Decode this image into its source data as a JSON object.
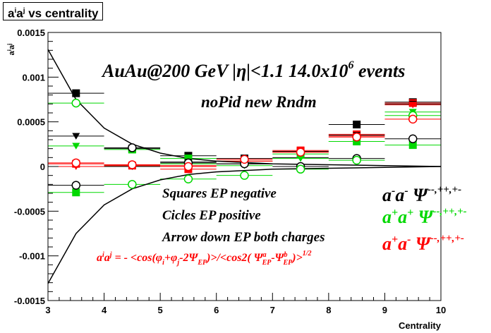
{
  "title": {
    "a": "a",
    "i": "i",
    "a2": "a",
    "j": "j",
    "rest": " vs centrality"
  },
  "annotations": {
    "line1_main": "AuAu@200 GeV |η|<1.1 14.0x10",
    "line1_sup": "6",
    "line1_tail": " events",
    "line2": "noPid new Rndm",
    "squares": "Squares EP negative",
    "circles": "Cicles EP positive",
    "arrows": "Arrow down EP both charges",
    "formula": "a",
    "formula_i": "i",
    "formula_a2": "a",
    "formula_j": "j",
    "formula_rest": " = - <cos(φ",
    "formula_sub_i": "i",
    "formula_plus": "+φ",
    "formula_sub_j": "j",
    "formula_minus": "-2Ψ",
    "formula_sub_ep": "EP",
    "formula_mid": ")>/<cos2( Ψ",
    "formula_sup_a": "a",
    "formula_sub_ep2": "EP",
    "formula_dash": "-Ψ",
    "formula_sup_b": "b",
    "formula_sub_ep3": "EP",
    "formula_end": ")>",
    "formula_exp": "1/2"
  },
  "legend": [
    {
      "a1": "a",
      "s1": "-",
      "a2": "a",
      "s2": "-",
      "psi": "Ψ",
      "sup": "--,++,+-",
      "color": "#000000"
    },
    {
      "a1": "a",
      "s1": "+",
      "a2": "a",
      "s2": "+",
      "psi": "Ψ",
      "sup": "--,++,+-",
      "color": "#00d800"
    },
    {
      "a1": "a",
      "s1": "+",
      "a2": "a",
      "s2": "-",
      "psi": "Ψ",
      "sup": "--,++,+-",
      "color": "#ff0000"
    }
  ],
  "chart_data": {
    "type": "scatter",
    "xlabel": "Centrality",
    "ylabel": "a^i a^j",
    "xlim": [
      3,
      10
    ],
    "ylim": [
      -0.0015,
      0.0015
    ],
    "x_ticks": [
      "3",
      "4",
      "5",
      "6",
      "7",
      "8",
      "9",
      "10"
    ],
    "y_ticks": [
      "-0.0015",
      "-0.001",
      "-0.0005",
      "0",
      "0.0005",
      "0.001",
      "0.0015"
    ],
    "x": [
      3.5,
      4.5,
      5.5,
      6.5,
      7.5,
      8.5,
      9.5
    ],
    "series": [
      {
        "color": "#000000",
        "marker": "square",
        "values": [
          0.00082,
          0.0002,
          0.00012,
          9e-05,
          0.00017,
          0.00047,
          0.00072
        ]
      },
      {
        "color": "#000000",
        "marker": "circle",
        "values": [
          -0.00021,
          0.00021,
          4e-05,
          3e-05,
          0.0,
          9e-05,
          0.00031
        ]
      },
      {
        "color": "#000000",
        "marker": "triangle-down",
        "values": [
          0.00034,
          0.0,
          5e-05,
          3e-05,
          0.0001,
          0.00035,
          0.0007
        ]
      },
      {
        "color": "#00d800",
        "marker": "square",
        "values": [
          -0.00029,
          0.00019,
          9e-05,
          6e-05,
          0.00014,
          0.00028,
          0.00024
        ]
      },
      {
        "color": "#00d800",
        "marker": "circle",
        "values": [
          0.00071,
          -0.0002,
          -0.00014,
          -0.0001,
          -3e-05,
          7e-05,
          0.00057
        ]
      },
      {
        "color": "#00d800",
        "marker": "triangle-down",
        "values": [
          0.00023,
          1e-05,
          3e-05,
          1e-05,
          9e-05,
          0.00028,
          0.00061
        ]
      },
      {
        "color": "#ff0000",
        "marker": "square",
        "values": [
          3e-05,
          1e-05,
          -3e-05,
          6e-05,
          0.00018,
          0.00036,
          0.00071
        ]
      },
      {
        "color": "#ff0000",
        "marker": "circle",
        "values": [
          4e-05,
          2e-05,
          0.0,
          8e-05,
          0.00016,
          0.00033,
          0.00053
        ]
      },
      {
        "color": "#ff0000",
        "marker": "triangle-down",
        "values": [
          0.0,
          1e-05,
          1e-05,
          6e-05,
          0.00016,
          0.00034,
          0.00069
        ]
      }
    ],
    "curves": [
      {
        "color": "#000000",
        "x": [
          3.0,
          3.5,
          4.0,
          4.5,
          5.0,
          5.5,
          6.0,
          7.0,
          8.0,
          9.0,
          10.0
        ],
        "values": [
          0.00131,
          0.00075,
          0.00043,
          0.00025,
          0.00015,
          9e-05,
          6e-05,
          3e-05,
          2e-05,
          1e-05,
          0.0
        ]
      },
      {
        "color": "#000000",
        "x": [
          3.0,
          3.5,
          4.0,
          4.5,
          5.0,
          5.5,
          6.0,
          7.0,
          8.0,
          9.0,
          10.0
        ],
        "values": [
          -0.00131,
          -0.00075,
          -0.00043,
          -0.00025,
          -0.00015,
          -9e-05,
          -6e-05,
          -3e-05,
          -2e-05,
          -1e-05,
          0.0
        ]
      }
    ]
  }
}
